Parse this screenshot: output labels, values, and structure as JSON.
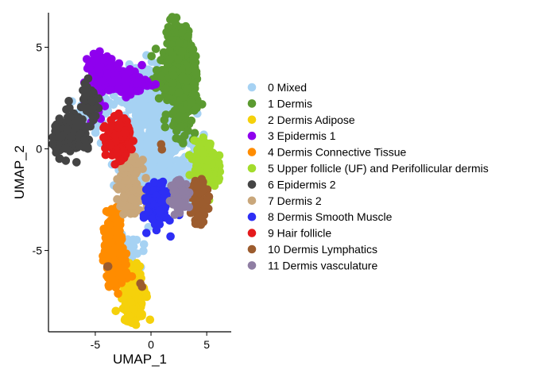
{
  "chart_data": {
    "type": "scatter",
    "xlabel": "UMAP_1",
    "ylabel": "UMAP_2",
    "xlim": [
      -9.2,
      7.2
    ],
    "ylim": [
      -9.0,
      6.7
    ],
    "xticks": [
      -5,
      0,
      5
    ],
    "yticks": [
      -5,
      0,
      5
    ],
    "grid": false,
    "legend_position": "right",
    "series": [
      {
        "name": "0 Mixed",
        "color": "#A6D2F3",
        "clusters": [
          {
            "cx": 0.3,
            "cy": 1.0,
            "sx": 1.6,
            "sy": 1.1,
            "n": 520
          },
          {
            "cx": 0.0,
            "cy": -1.0,
            "sx": 1.2,
            "sy": 1.0,
            "n": 180
          },
          {
            "cx": 1.5,
            "cy": -1.5,
            "sx": 1.0,
            "sy": 0.6,
            "n": 80
          },
          {
            "cx": -0.6,
            "cy": 3.0,
            "sx": 0.8,
            "sy": 0.6,
            "n": 90
          },
          {
            "cx": -5.0,
            "cy": 1.6,
            "sx": 1.0,
            "sy": 0.5,
            "n": 60
          },
          {
            "cx": -2.2,
            "cy": -5.3,
            "sx": 0.6,
            "sy": 0.5,
            "n": 50
          },
          {
            "cx": 3.8,
            "cy": -0.8,
            "sx": 0.5,
            "sy": 0.6,
            "n": 40
          }
        ]
      },
      {
        "name": "1 Dermis",
        "color": "#5B9A30",
        "clusters": [
          {
            "cx": 2.5,
            "cy": 4.8,
            "sx": 0.55,
            "sy": 0.75,
            "n": 260
          },
          {
            "cx": 2.8,
            "cy": 2.6,
            "sx": 0.6,
            "sy": 1.0,
            "n": 220
          },
          {
            "cx": 1.6,
            "cy": 3.6,
            "sx": 0.6,
            "sy": 0.6,
            "n": 90
          }
        ]
      },
      {
        "name": "2 Dermis Adipose",
        "color": "#F5D10B",
        "clusters": [
          {
            "cx": -1.5,
            "cy": -7.0,
            "sx": 0.5,
            "sy": 0.65,
            "n": 200
          },
          {
            "cx": -1.6,
            "cy": -8.0,
            "sx": 0.3,
            "sy": 0.3,
            "n": 50
          }
        ]
      },
      {
        "name": "3 Epidermis 1",
        "color": "#8F00EE",
        "clusters": [
          {
            "cx": -4.3,
            "cy": 3.8,
            "sx": 0.6,
            "sy": 0.4,
            "n": 170
          },
          {
            "cx": -2.4,
            "cy": 3.3,
            "sx": 1.0,
            "sy": 0.3,
            "n": 160
          },
          {
            "cx": -5.3,
            "cy": 2.5,
            "sx": 0.35,
            "sy": 0.4,
            "n": 50
          }
        ]
      },
      {
        "name": "4 Dermis Connective Tissue",
        "color": "#FF8C00",
        "clusters": [
          {
            "cx": -3.3,
            "cy": -5.2,
            "sx": 0.45,
            "sy": 0.6,
            "n": 200
          },
          {
            "cx": -3.0,
            "cy": -6.2,
            "sx": 0.5,
            "sy": 0.3,
            "n": 70
          },
          {
            "cx": -3.4,
            "cy": -3.7,
            "sx": 0.3,
            "sy": 0.45,
            "n": 60
          }
        ]
      },
      {
        "name": "5 Upper follicle (UF) and Perifollicular dermis",
        "color": "#A3DC2C",
        "clusters": [
          {
            "cx": 4.9,
            "cy": -0.8,
            "sx": 0.5,
            "sy": 0.55,
            "n": 210
          }
        ]
      },
      {
        "name": "6 Epidermis 2",
        "color": "#444444",
        "clusters": [
          {
            "cx": -7.0,
            "cy": 0.7,
            "sx": 0.9,
            "sy": 0.5,
            "n": 120
          },
          {
            "cx": -5.5,
            "cy": 2.3,
            "sx": 0.35,
            "sy": 0.45,
            "n": 60
          }
        ]
      },
      {
        "name": "7 Dermis 2",
        "color": "#C9A77B",
        "clusters": [
          {
            "cx": -1.8,
            "cy": -1.8,
            "sx": 0.45,
            "sy": 0.6,
            "n": 190
          },
          {
            "cx": -2.3,
            "cy": -0.9,
            "sx": 0.3,
            "sy": 0.3,
            "n": 40
          }
        ]
      },
      {
        "name": "8 Dermis Smooth Muscle",
        "color": "#2D2EF5",
        "clusters": [
          {
            "cx": 0.6,
            "cy": -2.8,
            "sx": 0.45,
            "sy": 0.5,
            "n": 190
          }
        ]
      },
      {
        "name": "9 Hair follicle",
        "color": "#E41A1C",
        "clusters": [
          {
            "cx": -3.0,
            "cy": 0.5,
            "sx": 0.55,
            "sy": 0.45,
            "n": 190
          }
        ]
      },
      {
        "name": "10 Dermis Lymphatics",
        "color": "#9C5C2E",
        "clusters": [
          {
            "cx": 4.3,
            "cy": -2.6,
            "sx": 0.35,
            "sy": 0.5,
            "n": 90
          },
          {
            "cx": -0.9,
            "cy": -6.6,
            "sx": 0.1,
            "sy": 0.1,
            "n": 2
          },
          {
            "cx": 0.9,
            "cy": 0.2,
            "sx": 0.1,
            "sy": 0.1,
            "n": 2
          },
          {
            "cx": -3.9,
            "cy": -5.8,
            "sx": 0.1,
            "sy": 0.1,
            "n": 2
          }
        ]
      },
      {
        "name": "11 Dermis vasculature",
        "color": "#8F7EA3",
        "clusters": [
          {
            "cx": 2.6,
            "cy": -2.3,
            "sx": 0.35,
            "sy": 0.4,
            "n": 90
          }
        ]
      }
    ]
  }
}
